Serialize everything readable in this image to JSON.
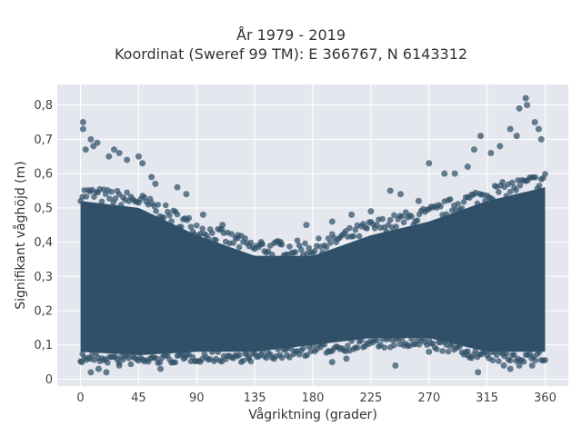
{
  "chart_data": {
    "type": "scatter",
    "title_lines": [
      "År 1979 - 2019",
      "Koordinat (Sweref 99 TM): E 366767, N 6143312"
    ],
    "xlabel": "Vågriktning (grader)",
    "ylabel": "Signifikant våghöjd (m)",
    "xlim": [
      -18,
      378
    ],
    "ylim": [
      -0.02,
      0.86
    ],
    "x_ticks": [
      0,
      45,
      90,
      135,
      180,
      225,
      270,
      315,
      360
    ],
    "y_ticks": [
      0,
      0.1,
      0.2,
      0.3,
      0.4,
      0.5,
      0.6,
      0.7,
      0.8
    ],
    "y_tick_labels": [
      "0",
      "0,1",
      "0,2",
      "0,3",
      "0,4",
      "0,5",
      "0,6",
      "0,7",
      "0,8"
    ],
    "grid": true,
    "background": "#e5e7ef",
    "marker_color": "#2f5068",
    "dense_band": [
      {
        "x": 0,
        "low": 0.08,
        "high": 0.52
      },
      {
        "x": 45,
        "low": 0.07,
        "high": 0.5
      },
      {
        "x": 90,
        "low": 0.08,
        "high": 0.42
      },
      {
        "x": 135,
        "low": 0.08,
        "high": 0.36
      },
      {
        "x": 180,
        "low": 0.1,
        "high": 0.36
      },
      {
        "x": 225,
        "low": 0.12,
        "high": 0.42
      },
      {
        "x": 270,
        "low": 0.12,
        "high": 0.46
      },
      {
        "x": 315,
        "low": 0.08,
        "high": 0.52
      },
      {
        "x": 360,
        "low": 0.08,
        "high": 0.56
      }
    ],
    "outliers": [
      {
        "x": 2,
        "y": 0.75
      },
      {
        "x": 2,
        "y": 0.73
      },
      {
        "x": 8,
        "y": 0.7
      },
      {
        "x": 10,
        "y": 0.68
      },
      {
        "x": 13,
        "y": 0.69
      },
      {
        "x": 4,
        "y": 0.67
      },
      {
        "x": 22,
        "y": 0.65
      },
      {
        "x": 26,
        "y": 0.67
      },
      {
        "x": 30,
        "y": 0.66
      },
      {
        "x": 36,
        "y": 0.64
      },
      {
        "x": 45,
        "y": 0.65
      },
      {
        "x": 48,
        "y": 0.63
      },
      {
        "x": 55,
        "y": 0.59
      },
      {
        "x": 58,
        "y": 0.57
      },
      {
        "x": 75,
        "y": 0.56
      },
      {
        "x": 82,
        "y": 0.54
      },
      {
        "x": 95,
        "y": 0.48
      },
      {
        "x": 110,
        "y": 0.45
      },
      {
        "x": 122,
        "y": 0.42
      },
      {
        "x": 140,
        "y": 0.4
      },
      {
        "x": 155,
        "y": 0.4
      },
      {
        "x": 175,
        "y": 0.45
      },
      {
        "x": 195,
        "y": 0.46
      },
      {
        "x": 210,
        "y": 0.48
      },
      {
        "x": 225,
        "y": 0.49
      },
      {
        "x": 240,
        "y": 0.55
      },
      {
        "x": 248,
        "y": 0.54
      },
      {
        "x": 262,
        "y": 0.52
      },
      {
        "x": 270,
        "y": 0.63
      },
      {
        "x": 282,
        "y": 0.6
      },
      {
        "x": 290,
        "y": 0.6
      },
      {
        "x": 300,
        "y": 0.62
      },
      {
        "x": 305,
        "y": 0.67
      },
      {
        "x": 310,
        "y": 0.71
      },
      {
        "x": 318,
        "y": 0.66
      },
      {
        "x": 325,
        "y": 0.68
      },
      {
        "x": 333,
        "y": 0.73
      },
      {
        "x": 338,
        "y": 0.71
      },
      {
        "x": 340,
        "y": 0.79
      },
      {
        "x": 345,
        "y": 0.82
      },
      {
        "x": 346,
        "y": 0.8
      },
      {
        "x": 352,
        "y": 0.75
      },
      {
        "x": 355,
        "y": 0.73
      },
      {
        "x": 357,
        "y": 0.7
      },
      {
        "x": 8,
        "y": 0.02
      },
      {
        "x": 14,
        "y": 0.03
      },
      {
        "x": 20,
        "y": 0.02
      },
      {
        "x": 62,
        "y": 0.03
      },
      {
        "x": 195,
        "y": 0.05
      },
      {
        "x": 206,
        "y": 0.06
      },
      {
        "x": 244,
        "y": 0.04
      },
      {
        "x": 308,
        "y": 0.02
      },
      {
        "x": 328,
        "y": 0.04
      },
      {
        "x": 333,
        "y": 0.03
      },
      {
        "x": 340,
        "y": 0.04
      },
      {
        "x": 350,
        "y": 0.04
      },
      {
        "x": 1,
        "y": 0.05
      },
      {
        "x": 30,
        "y": 0.04
      },
      {
        "x": 80,
        "y": 0.06
      },
      {
        "x": 130,
        "y": 0.06
      },
      {
        "x": 160,
        "y": 0.07
      },
      {
        "x": 270,
        "y": 0.08
      },
      {
        "x": 300,
        "y": 0.07
      }
    ]
  }
}
